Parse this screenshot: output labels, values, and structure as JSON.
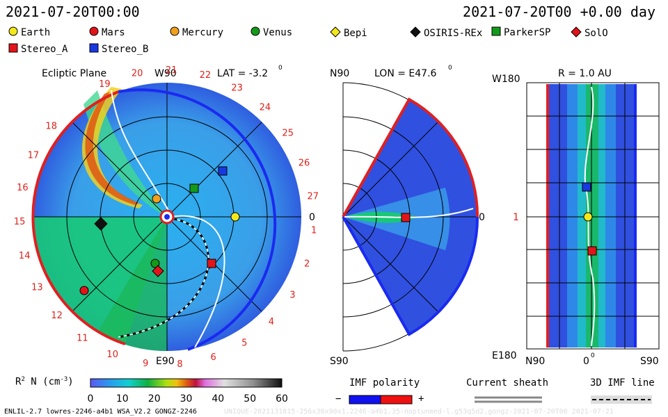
{
  "header": {
    "left_time": "2021-07-20T00:00",
    "right_time": "2021-07-20T00 +0.00 day"
  },
  "legend": [
    {
      "label": "Earth",
      "icon": "circle",
      "color": "#f4e81a"
    },
    {
      "label": "Mars",
      "icon": "circle",
      "color": "#e2141a"
    },
    {
      "label": "Mercury",
      "icon": "circle",
      "color": "#f0a01c"
    },
    {
      "label": "Venus",
      "icon": "circle",
      "color": "#139a1a"
    },
    {
      "label": "Bepi",
      "icon": "diamond",
      "color": "#f4e81a"
    },
    {
      "label": "OSIRIS-REx",
      "icon": "diamond",
      "color": "#111111"
    },
    {
      "label": "ParkerSP",
      "icon": "square",
      "color": "#139a1a"
    },
    {
      "label": "SolO",
      "icon": "diamond",
      "color": "#e2141a"
    },
    {
      "label": "Stereo_A",
      "icon": "square",
      "color": "#e2141a"
    },
    {
      "label": "Stereo_B",
      "icon": "square",
      "color": "#1838e0"
    }
  ],
  "panels": {
    "ecliptic": {
      "title": "Ecliptic Plane",
      "top_label": "W90",
      "bottom_label": "E90",
      "right_label": "0",
      "lat_label": "LAT = -3.2",
      "deg": "0",
      "clock_labels": [
        "19",
        "20",
        "21",
        "22",
        "23",
        "24",
        "25",
        "26",
        "27",
        "1",
        "2",
        "3",
        "4",
        "5",
        "6",
        "8",
        "9",
        "10",
        "11",
        "12",
        "13",
        "14",
        "15",
        "16",
        "17",
        "18"
      ]
    },
    "meridional": {
      "top_label": "N90",
      "bottom_label": "S90",
      "right_label": "0",
      "lon_label": "LON = E47.6",
      "deg": "0"
    },
    "radial": {
      "r_label": "R = 1.0 AU",
      "top_left": "W180",
      "bottom_left": "E180",
      "mid_left": "1",
      "bottom_n": "N90",
      "bottom_mid": "0",
      "bottom_s": "S90",
      "deg": "0"
    }
  },
  "colorbar": {
    "label": "R",
    "label_sup": "2",
    "label_rest": " N (cm",
    "label_sup2": "-3",
    "label_end": ")",
    "ticks": [
      "0",
      "10",
      "20",
      "30",
      "40",
      "50",
      "60"
    ]
  },
  "imf": {
    "polarity_label": "IMF polarity",
    "minus": "−",
    "plus": "+",
    "sheath_label": "Current sheath",
    "line_label": "3D IMF line",
    "polarity_colors": [
      "#1010f0",
      "#f01010"
    ]
  },
  "footer": {
    "model": "ENLIL-2.7 lowres-2246-a4b1 WSA_V2.2 GONGZ-2246",
    "watermark": "UNIQUE-2021131815-256x30x90x1.2246-a4b1.35-noptunmed-l.g53q5d2.gongz-2021-07-20T00 2021-07-21"
  }
}
